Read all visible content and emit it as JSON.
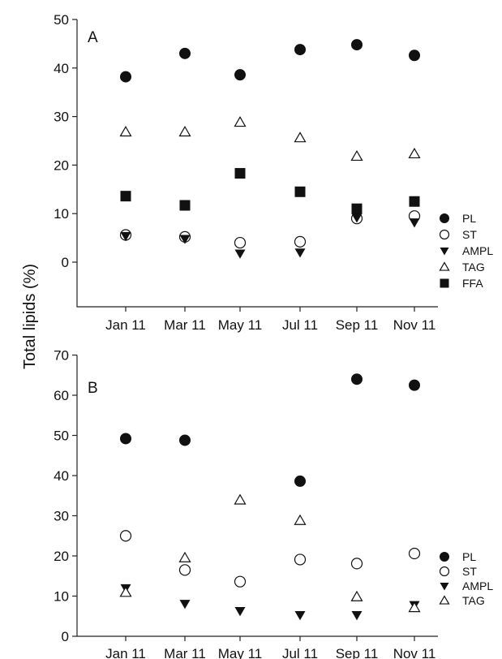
{
  "ylabel": "Total lipids (%)",
  "chart_data": [
    {
      "panel": "A",
      "type": "scatter",
      "categories": [
        "Jan 11",
        "Mar 11",
        "May 11",
        "Jul 11",
        "Sep 11",
        "Nov 11"
      ],
      "ylim": [
        -9,
        50
      ],
      "yticks": [
        0,
        10,
        20,
        30,
        40,
        50
      ],
      "legend_position": "bottom-right",
      "series": [
        {
          "name": "PL",
          "marker": "circle-filled",
          "values": [
            38.2,
            43.0,
            38.6,
            43.8,
            44.8,
            42.6
          ]
        },
        {
          "name": "ST",
          "marker": "circle-open",
          "values": [
            5.6,
            5.2,
            4.0,
            4.2,
            9.0,
            9.5
          ]
        },
        {
          "name": "AMPL",
          "marker": "triangle-down",
          "values": [
            5.4,
            4.8,
            1.8,
            2.0,
            9.2,
            8.2
          ]
        },
        {
          "name": "TAG",
          "marker": "triangle-open",
          "values": [
            26.8,
            26.8,
            28.8,
            25.6,
            21.8,
            22.3
          ]
        },
        {
          "name": "FFA",
          "marker": "square-filled",
          "values": [
            13.6,
            11.7,
            18.3,
            14.5,
            11.0,
            12.5
          ]
        }
      ]
    },
    {
      "panel": "B",
      "type": "scatter",
      "categories": [
        "Jan 11",
        "Mar 11",
        "May 11",
        "Jul 11",
        "Sep 11",
        "Nov 11"
      ],
      "ylim": [
        0,
        70
      ],
      "yticks": [
        0,
        10,
        20,
        30,
        40,
        50,
        60,
        70
      ],
      "legend_position": "bottom-right",
      "series": [
        {
          "name": "PL",
          "marker": "circle-filled",
          "values": [
            49.2,
            48.8,
            null,
            38.6,
            64.0,
            62.5
          ]
        },
        {
          "name": "ST",
          "marker": "circle-open",
          "values": [
            25.0,
            16.5,
            13.6,
            19.1,
            18.1,
            20.6
          ]
        },
        {
          "name": "AMPL",
          "marker": "triangle-down",
          "values": [
            12.0,
            8.1,
            6.3,
            5.3,
            5.3,
            7.8
          ]
        },
        {
          "name": "TAG",
          "marker": "triangle-open",
          "values": [
            10.9,
            19.5,
            33.9,
            28.8,
            9.8,
            7.1
          ]
        }
      ]
    }
  ]
}
